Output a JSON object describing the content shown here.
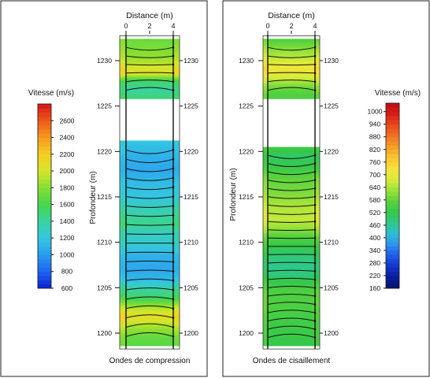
{
  "chart_data": [
    {
      "type": "heatmap",
      "xlabel": "Distance (m)",
      "ylabel": "Profondeur (m)",
      "caption": "Ondes de compression",
      "x_ticks": [
        0,
        2,
        4
      ],
      "y_ticks": [
        1230,
        1225,
        1220,
        1215,
        1210,
        1205,
        1200
      ],
      "xlim": [
        0,
        4
      ],
      "ylim": [
        1198.6,
        1232.4
      ],
      "boreholes_x": [
        0,
        4
      ],
      "colorbar": {
        "title": "Vitesse (m/s)",
        "ticks": [
          600,
          800,
          1000,
          1200,
          1400,
          1600,
          1800,
          2000,
          2200,
          2400,
          2600
        ],
        "range": [
          600,
          2800
        ],
        "colors": [
          "#0b1fd4",
          "#1e64f0",
          "#2a9cf2",
          "#34c6e0",
          "#3ad2a0",
          "#46d64e",
          "#86de32",
          "#d4e62a",
          "#f4d020",
          "#f59a1f",
          "#ee5a1a",
          "#d9151a"
        ]
      },
      "zones": [
        {
          "top": 1232.4,
          "bottom": 1225.8,
          "profile": [
            [
              1232.4,
              1700
            ],
            [
              1231.6,
              1750
            ],
            [
              1230.2,
              1850
            ],
            [
              1229.0,
              2050
            ],
            [
              1228.5,
              2000
            ],
            [
              1227.8,
              1550
            ],
            [
              1226.8,
              1400
            ],
            [
              1225.8,
              1500
            ]
          ]
        },
        {
          "top": 1221.2,
          "bottom": 1198.6,
          "profile": [
            [
              1221.2,
              1200
            ],
            [
              1219.5,
              1100
            ],
            [
              1218.0,
              1050
            ],
            [
              1216.5,
              1150
            ],
            [
              1215.0,
              1200
            ],
            [
              1213.5,
              1350
            ],
            [
              1212.0,
              1450
            ],
            [
              1211.0,
              1300
            ],
            [
              1209.8,
              1250
            ],
            [
              1208.5,
              1100
            ],
            [
              1207.0,
              1050
            ],
            [
              1205.8,
              1150
            ],
            [
              1204.8,
              1400
            ],
            [
              1203.8,
              1550
            ],
            [
              1202.8,
              1900
            ],
            [
              1201.8,
              2100
            ],
            [
              1200.8,
              1900
            ],
            [
              1199.6,
              1700
            ],
            [
              1198.6,
              1650
            ]
          ]
        }
      ],
      "raypaths": [
        {
          "top": 1232.4,
          "bottom": 1225.8,
          "n": 6
        },
        {
          "top": 1221.2,
          "bottom": 1198.6,
          "n": 21
        }
      ]
    },
    {
      "type": "heatmap",
      "xlabel": "Distance (m)",
      "ylabel": "Profondeur (m)",
      "caption": "Ondes de cisaillement",
      "x_ticks": [
        0,
        2,
        4
      ],
      "y_ticks": [
        1230,
        1225,
        1220,
        1215,
        1210,
        1205,
        1200
      ],
      "xlim": [
        0,
        4
      ],
      "ylim": [
        1198.6,
        1232.4
      ],
      "boreholes_x": [
        0,
        4
      ],
      "colorbar": {
        "title": "Vitesse (m/s)",
        "ticks": [
          160,
          220,
          280,
          340,
          400,
          460,
          520,
          580,
          640,
          700,
          760,
          820,
          880,
          940,
          1000
        ],
        "range": [
          160,
          1040
        ],
        "colors": [
          "#08126a",
          "#0a1d9a",
          "#1232c8",
          "#1f5ae8",
          "#2e90f0",
          "#30bcd6",
          "#2ec88a",
          "#35c84a",
          "#58d23e",
          "#9ae23a",
          "#d8ec3a",
          "#f6e23a",
          "#f7c530",
          "#f59e28",
          "#f27222",
          "#ea4a1d",
          "#d81e18",
          "#c00c12"
        ]
      },
      "zones": [
        {
          "top": 1232.4,
          "bottom": 1225.8,
          "profile": [
            [
              1232.4,
              560
            ],
            [
              1231.5,
              600
            ],
            [
              1230.2,
              660
            ],
            [
              1229.2,
              720
            ],
            [
              1228.2,
              680
            ],
            [
              1227.2,
              600
            ],
            [
              1226.2,
              560
            ],
            [
              1225.8,
              560
            ]
          ]
        },
        {
          "top": 1220.5,
          "bottom": 1198.6,
          "profile": [
            [
              1220.5,
              540
            ],
            [
              1219.5,
              500
            ],
            [
              1218.5,
              520
            ],
            [
              1217.0,
              580
            ],
            [
              1215.5,
              600
            ],
            [
              1214.0,
              640
            ],
            [
              1212.5,
              660
            ],
            [
              1211.5,
              620
            ],
            [
              1210.5,
              560
            ],
            [
              1209.5,
              520
            ],
            [
              1208.5,
              490
            ],
            [
              1207.5,
              470
            ],
            [
              1206.5,
              480
            ],
            [
              1205.5,
              530
            ],
            [
              1204.5,
              560
            ],
            [
              1203.0,
              560
            ],
            [
              1201.5,
              540
            ],
            [
              1200.0,
              530
            ],
            [
              1198.6,
              520
            ]
          ]
        }
      ],
      "raypaths": [
        {
          "top": 1232.4,
          "bottom": 1225.8,
          "n": 6
        },
        {
          "top": 1220.5,
          "bottom": 1198.6,
          "n": 23
        }
      ]
    }
  ]
}
